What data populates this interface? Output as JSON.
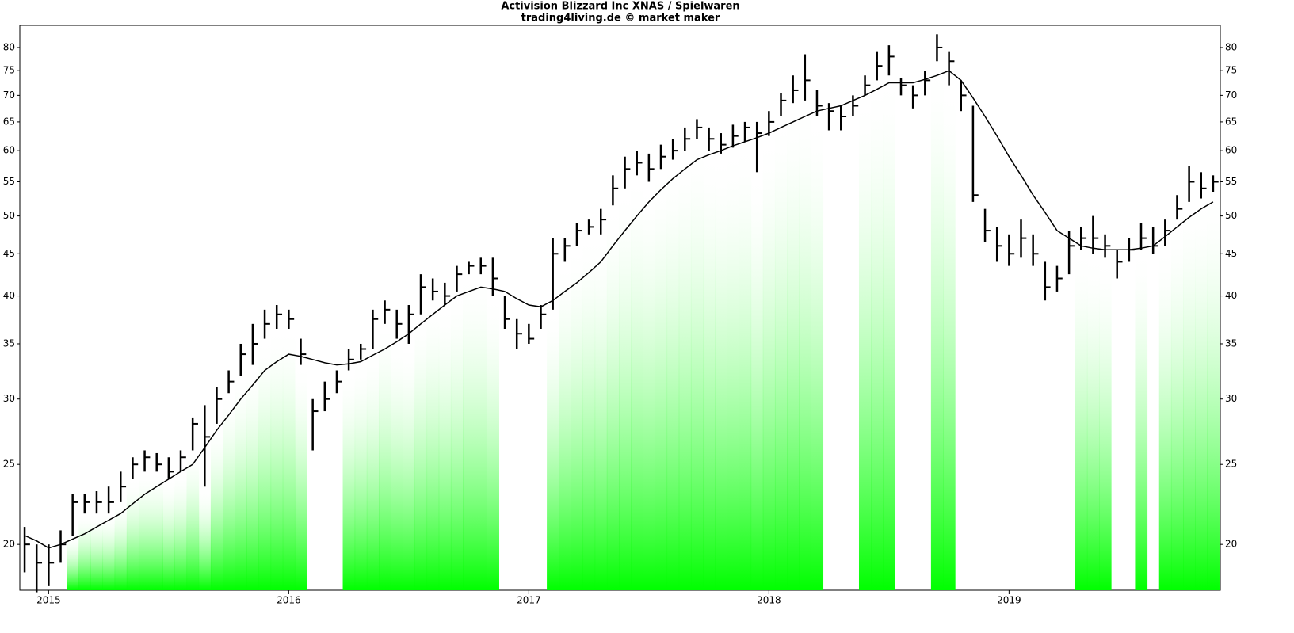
{
  "chart_data": {
    "type": "ohlc",
    "title": "Activision Blizzard Inc XNAS / Spielwaren",
    "subtitle": "trading4living.de © market maker",
    "x": [
      2014.9,
      2014.95,
      2015.0,
      2015.05,
      2015.1,
      2015.15,
      2015.2,
      2015.25,
      2015.3,
      2015.35,
      2015.4,
      2015.45,
      2015.5,
      2015.55,
      2015.6,
      2015.65,
      2015.7,
      2015.75,
      2015.8,
      2015.85,
      2015.9,
      2015.95,
      2016.0,
      2016.05,
      2016.1,
      2016.15,
      2016.2,
      2016.25,
      2016.3,
      2016.35,
      2016.4,
      2016.45,
      2016.5,
      2016.55,
      2016.6,
      2016.65,
      2016.7,
      2016.75,
      2016.8,
      2016.85,
      2016.9,
      2016.95,
      2017.0,
      2017.05,
      2017.1,
      2017.15,
      2017.2,
      2017.25,
      2017.3,
      2017.35,
      2017.4,
      2017.45,
      2017.5,
      2017.55,
      2017.6,
      2017.65,
      2017.7,
      2017.75,
      2017.8,
      2017.85,
      2017.9,
      2017.95,
      2018.0,
      2018.05,
      2018.1,
      2018.15,
      2018.2,
      2018.25,
      2018.3,
      2018.35,
      2018.4,
      2018.45,
      2018.5,
      2018.55,
      2018.6,
      2018.65,
      2018.7,
      2018.75,
      2018.8,
      2018.85,
      2018.9,
      2018.95,
      2019.0,
      2019.05,
      2019.1,
      2019.15,
      2019.2,
      2019.25,
      2019.3,
      2019.35,
      2019.4,
      2019.45,
      2019.5,
      2019.55,
      2019.6,
      2019.65,
      2019.7,
      2019.75,
      2019.8,
      2019.85
    ],
    "high": [
      21,
      20,
      20,
      20.8,
      23,
      23,
      23.2,
      23.5,
      24.5,
      25.5,
      26,
      25.8,
      25.5,
      26,
      28.5,
      29.5,
      31,
      32.5,
      35,
      37,
      38.5,
      39,
      38.5,
      35.5,
      30,
      31.5,
      32.5,
      34.5,
      35,
      38.5,
      39.5,
      38.5,
      39,
      42.5,
      42,
      41.5,
      43.5,
      44,
      44.5,
      44.5,
      40,
      37.5,
      37,
      39,
      47,
      47,
      49,
      49.5,
      51,
      56,
      59,
      60,
      59.5,
      61,
      62,
      64,
      65.5,
      64,
      63,
      64.5,
      65,
      65,
      67,
      70.5,
      74,
      78.5,
      71,
      68.5,
      68,
      70,
      74,
      79,
      80.5,
      73.5,
      72,
      75,
      83,
      79,
      73,
      68,
      51,
      48.5,
      47.5,
      49.5,
      47.5,
      44,
      43.5,
      48,
      48.5,
      50,
      47.5,
      45.5,
      47,
      49,
      48.5,
      49.5,
      53,
      57.5,
      56.5,
      56
    ],
    "low": [
      18.5,
      17.5,
      17.8,
      19,
      20.5,
      21.8,
      21.8,
      21.8,
      22.5,
      24,
      24.5,
      24.5,
      24,
      24.5,
      26,
      23.5,
      28,
      30.5,
      32,
      33,
      35.5,
      36.5,
      36.5,
      33,
      26,
      29,
      30.5,
      32.5,
      33.5,
      34.5,
      37,
      35.5,
      35,
      38,
      39.5,
      39,
      40.5,
      42.5,
      42.5,
      40,
      36.5,
      34.5,
      35,
      36.5,
      38.5,
      44,
      46,
      47.5,
      47.5,
      51.5,
      54,
      56,
      55,
      57,
      58.5,
      60,
      62,
      60,
      59.5,
      60.5,
      61.5,
      56.5,
      62.5,
      66,
      68.5,
      69,
      66,
      63.5,
      63.5,
      66,
      70,
      73,
      74,
      70,
      67.5,
      70,
      77,
      72,
      67,
      52,
      46.5,
      44,
      43.5,
      44.5,
      43.5,
      39.5,
      40.5,
      42.5,
      45.5,
      45,
      44.5,
      42,
      44,
      45.5,
      45,
      46,
      49.5,
      52,
      52.5,
      53.5
    ],
    "close": [
      20,
      19,
      19,
      20,
      22.5,
      22.5,
      22.5,
      22.5,
      23.5,
      25,
      25.5,
      25,
      24.5,
      25.5,
      28,
      27,
      30,
      31.5,
      34,
      35,
      37,
      38,
      37.5,
      34,
      29,
      30,
      31.5,
      33.5,
      34.5,
      37.5,
      38.5,
      37,
      38,
      41,
      40.5,
      40,
      42.5,
      43.5,
      43.5,
      42,
      37.5,
      36,
      35.5,
      38,
      45,
      46,
      48,
      48.5,
      49.5,
      54,
      57,
      58,
      57,
      59,
      60,
      62,
      64,
      62,
      61,
      62.5,
      64,
      63,
      65,
      69,
      71,
      73,
      68,
      67,
      66,
      68,
      72,
      76,
      78,
      72,
      70,
      73,
      80,
      77,
      70,
      53,
      48,
      46,
      45,
      47,
      45,
      41,
      42,
      46,
      47,
      47,
      46,
      44,
      45.5,
      47,
      46,
      48,
      51,
      55,
      54,
      55
    ],
    "ma": {
      "color": "#000000",
      "values": [
        20.5,
        20.2,
        19.8,
        20,
        20.3,
        20.6,
        21,
        21.4,
        21.8,
        22.4,
        23,
        23.5,
        24,
        24.5,
        25,
        26.2,
        27.5,
        28.7,
        30,
        31.2,
        32.5,
        33.3,
        34,
        33.8,
        33.5,
        33.2,
        33,
        33.1,
        33.3,
        33.9,
        34.5,
        35.2,
        36,
        37,
        38,
        39,
        40,
        40.5,
        41,
        40.8,
        40.5,
        39.7,
        39,
        38.8,
        39.5,
        40.5,
        41.5,
        42.7,
        44,
        46,
        48,
        50,
        52,
        53.8,
        55.5,
        57,
        58.5,
        59.3,
        60,
        60.8,
        61.5,
        62.2,
        63,
        64,
        65,
        66,
        67,
        67.5,
        68,
        69,
        70,
        71.2,
        72.5,
        72.5,
        72.5,
        73.2,
        74,
        75,
        73,
        69.5,
        66,
        62.5,
        59,
        56,
        53,
        50.5,
        48,
        47,
        46,
        45.7,
        45.5,
        45.5,
        45.5,
        45.7,
        46,
        47.2,
        48.5,
        49.8,
        51,
        52
      ]
    },
    "bar_color": "#000000",
    "shade_color": "#00ff00",
    "xlim": [
      2014.88,
      2019.88
    ],
    "xticks": [
      2015,
      2016,
      2017,
      2018,
      2019
    ],
    "ylim": [
      17.6,
      85.1
    ],
    "yticks": [
      20,
      25,
      30,
      35,
      40,
      45,
      50,
      55,
      60,
      65,
      70,
      75,
      80
    ],
    "log_scale": true
  }
}
